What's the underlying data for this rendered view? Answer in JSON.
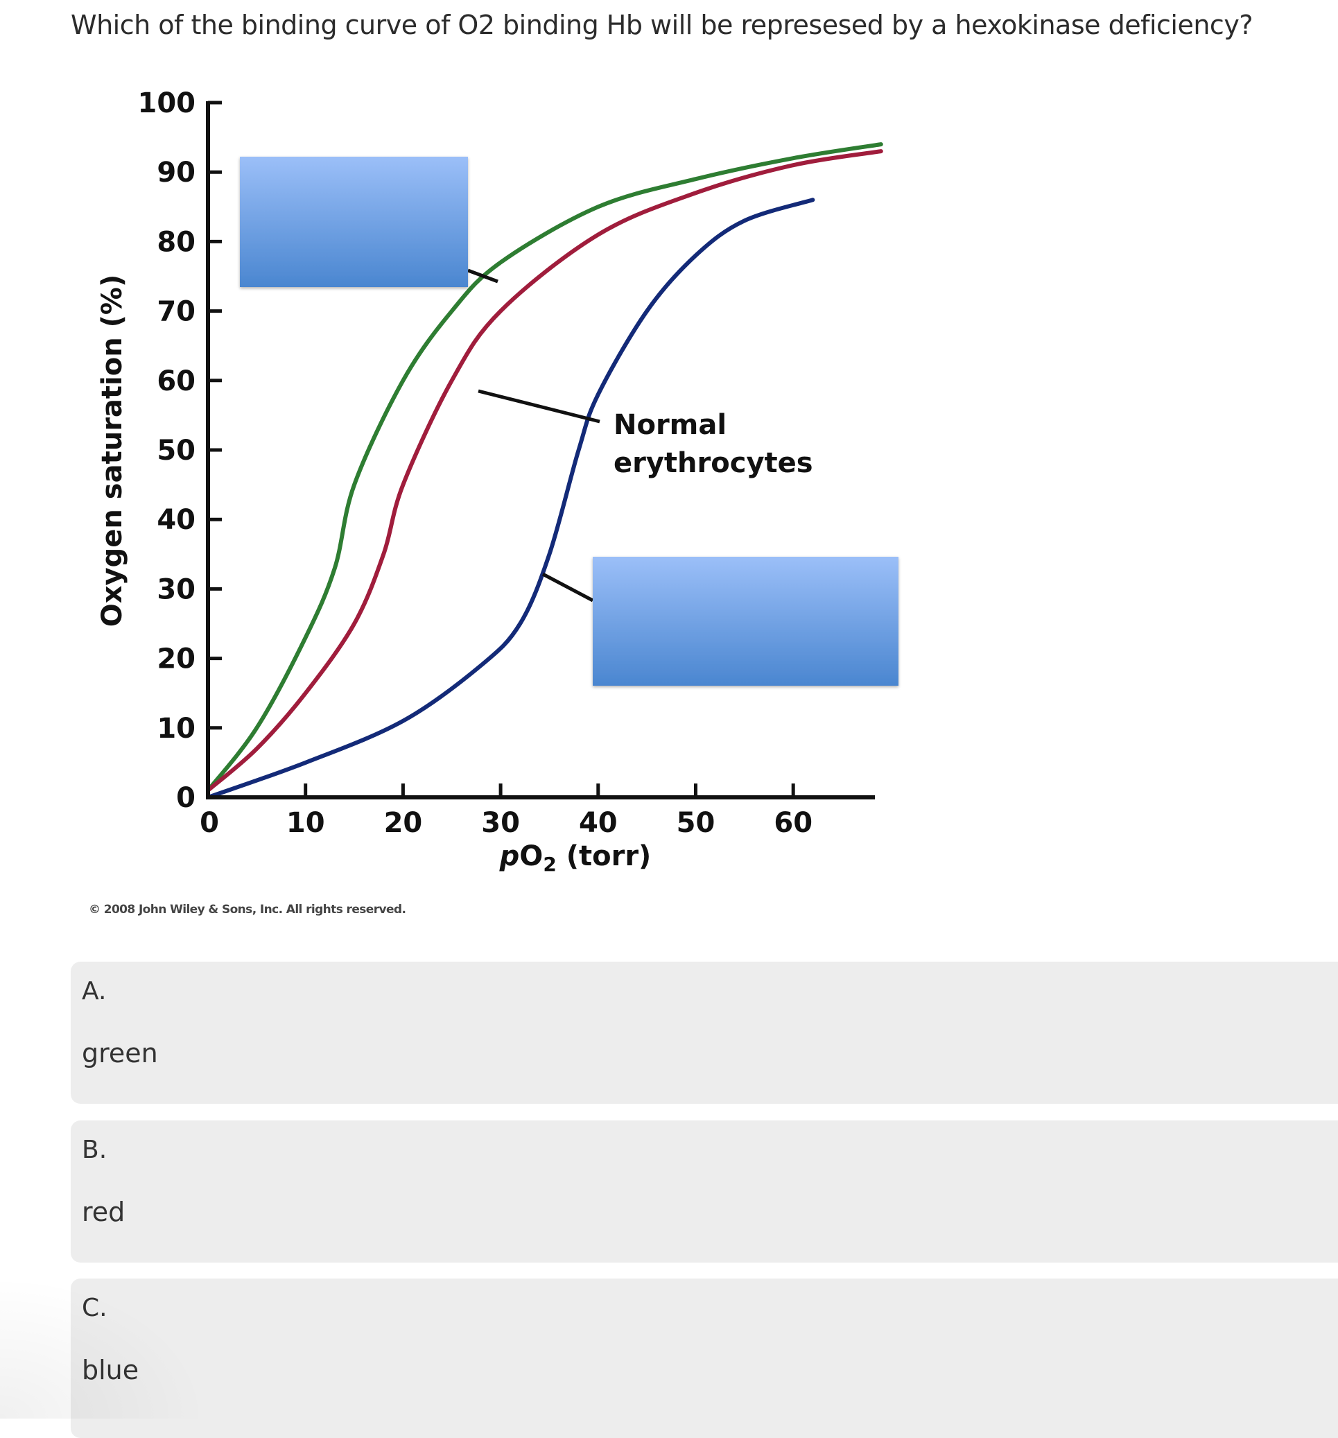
{
  "question": {
    "text": "Which of the binding curve of O2 binding Hb will be represesed by a hexokinase deficiency?"
  },
  "figure": {
    "annotation_label_line1": "Normal",
    "annotation_label_line2": "erythrocytes",
    "copyright": "© 2008 John Wiley & Sons, Inc. All rights reserved.",
    "hidden_label_boxes": 2,
    "label_box_color_top": "#9bbff8",
    "label_box_color_bottom": "#4a86d0"
  },
  "chart_data": {
    "type": "line",
    "title": "",
    "xlabel": "pO2 (torr)",
    "ylabel": "Oxygen saturation (%)",
    "xlim": [
      0,
      69
    ],
    "ylim": [
      0,
      100
    ],
    "x_ticks": [
      0,
      10,
      20,
      30,
      40,
      50,
      60
    ],
    "y_ticks": [
      0,
      10,
      20,
      30,
      40,
      50,
      60,
      70,
      80,
      90,
      100
    ],
    "grid": false,
    "legend": "none (annotation labels; two covered by blue boxes)",
    "annotations": [
      "Normal erythrocytes (red curve)",
      "covered label pointing to green curve",
      "covered label pointing to blue curve"
    ],
    "series": [
      {
        "name": "green",
        "color": "#2e7d32",
        "x": [
          0,
          5,
          10,
          13,
          15,
          20,
          25,
          30,
          40,
          50,
          60,
          69
        ],
        "y": [
          1,
          10,
          23,
          33,
          45,
          60,
          70,
          77,
          85,
          89,
          92,
          94
        ]
      },
      {
        "name": "red (Normal erythrocytes)",
        "color": "#a01d3c",
        "x": [
          0,
          5,
          10,
          15,
          18,
          20,
          25,
          30,
          40,
          50,
          60,
          69
        ],
        "y": [
          1,
          7,
          15,
          25,
          35,
          45,
          60,
          70,
          81,
          87,
          91,
          93
        ]
      },
      {
        "name": "blue",
        "color": "#132a78",
        "x": [
          0,
          10,
          20,
          28,
          32,
          35,
          38,
          40,
          45,
          50,
          55,
          62
        ],
        "y": [
          0,
          5,
          11,
          19,
          25,
          35,
          50,
          58,
          70,
          78,
          83,
          86
        ]
      }
    ]
  },
  "options": [
    {
      "letter": "A.",
      "text": "green"
    },
    {
      "letter": "B.",
      "text": "red"
    },
    {
      "letter": "C.",
      "text": "blue"
    }
  ]
}
